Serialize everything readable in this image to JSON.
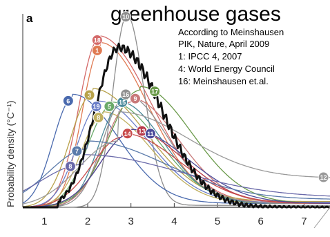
{
  "title_fragment": "greenhouse gases",
  "panel_label": "a",
  "ylabel": "Probability density (°C⁻¹)",
  "annotation_lines": [
    "According to Meinshausen",
    "PIK, Nature, April 2009",
    "1: IPCC 4, 2007",
    "4: World Energy Council",
    "16: Meinshausen et.al."
  ],
  "chart_data": {
    "type": "line",
    "xlim": [
      0.5,
      7.6
    ],
    "ylim": [
      0,
      1.0
    ],
    "xticks": [
      "1",
      "2",
      "3",
      "4",
      "5",
      "6",
      "7"
    ],
    "grid": false,
    "series": [
      {
        "name": "",
        "color": "#d46a6a",
        "marker": "18",
        "marker_x": 2.22,
        "peak": 2.25,
        "sl": 0.45,
        "sr": 1.2,
        "amp": 0.86,
        "tail": 0.02
      },
      {
        "name": "",
        "color": "#e07a52",
        "marker": "1",
        "marker_x": 2.22,
        "peak": 2.3,
        "sl": 0.42,
        "sr": 1.1,
        "amp": 0.82,
        "tail": 0.025
      },
      {
        "name": "",
        "color": "#8c8c8c",
        "marker": "10",
        "marker_x": 2.88,
        "peak": 2.9,
        "sl": 0.32,
        "sr": 0.4,
        "amp": 0.98,
        "tail": 0.01
      },
      {
        "name": "",
        "color": "#b8a24a",
        "marker": "3",
        "marker_x": 2.04,
        "peak": 2.1,
        "sl": 0.5,
        "sr": 1.25,
        "amp": 0.58,
        "tail": 0.03
      },
      {
        "name": "",
        "color": "#6aaa6a",
        "marker": "5",
        "marker_x": 2.5,
        "peak": 2.55,
        "sl": 0.55,
        "sr": 1.1,
        "amp": 0.52,
        "tail": 0.02
      },
      {
        "name": "",
        "color": "#4a6aae",
        "marker": "6",
        "marker_x": 1.55,
        "peak": 1.65,
        "sl": 0.45,
        "sr": 1.05,
        "amp": 0.56,
        "tail": 0.02
      },
      {
        "name": "",
        "color": "#6a7ec8",
        "marker": "19",
        "marker_x": 2.2,
        "peak": 2.25,
        "sl": 0.5,
        "sr": 1.15,
        "amp": 0.52,
        "tail": 0.025
      },
      {
        "name": "",
        "color": "#c0b060",
        "marker": "8",
        "marker_x": 2.25,
        "peak": 2.35,
        "sl": 0.5,
        "sr": 1.1,
        "amp": 0.47,
        "tail": 0.02
      },
      {
        "name": "",
        "color": "#4a8a9a",
        "marker": "15",
        "marker_x": 2.8,
        "peak": 2.75,
        "sl": 0.5,
        "sr": 1.0,
        "amp": 0.52,
        "tail": 0.02
      },
      {
        "name": "",
        "color": "#909090",
        "marker": "16",
        "marker_x": 2.88,
        "peak": 2.85,
        "sl": 0.5,
        "sr": 1.0,
        "amp": 0.56,
        "tail": 0.02
      },
      {
        "name": "",
        "color": "#c87a7a",
        "marker": "9",
        "marker_x": 3.1,
        "peak": 3.0,
        "sl": 0.6,
        "sr": 1.1,
        "amp": 0.54,
        "tail": 0.02
      },
      {
        "name": "",
        "color": "#6a9a4a",
        "marker": "17",
        "marker_x": 3.55,
        "peak": 3.2,
        "sl": 0.7,
        "sr": 1.2,
        "amp": 0.6,
        "tail": 0.02
      },
      {
        "name": "",
        "color": "#b83a4a",
        "marker": "13",
        "marker_x": 3.25,
        "peak": 3.0,
        "sl": 0.7,
        "sr": 1.2,
        "amp": 0.38,
        "tail": 0.02
      },
      {
        "name": "",
        "color": "#c84a4a",
        "marker": "14",
        "marker_x": 2.92,
        "peak": 2.8,
        "sl": 0.7,
        "sr": 1.3,
        "amp": 0.36,
        "tail": 0.02
      },
      {
        "name": "",
        "color": "#4a4a9a",
        "marker": "11",
        "marker_x": 3.45,
        "peak": 3.0,
        "sl": 0.7,
        "sr": 1.3,
        "amp": 0.38,
        "tail": 0.02
      },
      {
        "name": "",
        "color": "#5a7aaa",
        "marker": "7",
        "marker_x": 1.75,
        "peak": 2.0,
        "sl": 0.9,
        "sr": 1.8,
        "amp": 0.3,
        "tail": 0.04
      },
      {
        "name": "",
        "color": "#6a6aaa",
        "marker": "8",
        "marker_x": 1.6,
        "peak": 1.9,
        "sl": 1.0,
        "sr": 2.2,
        "amp": 0.22,
        "tail": 0.05
      },
      {
        "name": "",
        "color": "#9a9a9a",
        "marker": "12",
        "marker_x": 7.45,
        "peak": 2.7,
        "sl": 0.9,
        "sr": 1.6,
        "amp": 0.34,
        "tail": 0.15
      }
    ],
    "composite": {
      "name": "",
      "color": "#111111",
      "peak": 2.72,
      "sl": 0.55,
      "sr": 1.0,
      "amp": 0.82,
      "tail": 0.0
    }
  }
}
